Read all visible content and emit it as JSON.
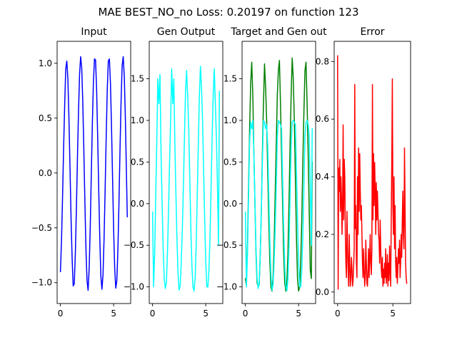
{
  "title": "MAE BEST_NO_no Loss: 0.20197 on function 123",
  "chart_data": [
    {
      "type": "line",
      "title": "Input",
      "xlim": [
        -0.31,
        6.6
      ],
      "ylim": [
        -1.19,
        1.2
      ],
      "xticks": [
        0,
        5
      ],
      "xtick_labels": [
        "0",
        "5"
      ],
      "yticks": [
        -1.0,
        -0.5,
        0.0,
        0.5,
        1.0
      ],
      "ytick_labels": [
        "−1.0",
        "−0.5",
        "0.0",
        "0.5",
        "1.0"
      ],
      "series": [
        {
          "color": "#0000ff",
          "x": [
            0,
            0.1,
            0.2,
            0.3,
            0.4,
            0.5,
            0.6,
            0.7,
            0.8,
            0.9,
            1.0,
            1.1,
            1.2,
            1.3,
            1.4,
            1.5,
            1.6,
            1.7,
            1.8,
            1.9,
            2.0,
            2.1,
            2.2,
            2.3,
            2.4,
            2.5,
            2.6,
            2.7,
            2.8,
            2.9,
            3.0,
            3.1,
            3.2,
            3.3,
            3.4,
            3.5,
            3.6,
            3.7,
            3.8,
            3.9,
            4.0,
            4.1,
            4.2,
            4.3,
            4.4,
            4.5,
            4.6,
            4.7,
            4.8,
            4.9,
            5.0,
            5.1,
            5.2,
            5.3,
            5.4,
            5.5,
            5.6,
            5.7,
            5.8,
            5.9,
            6.0,
            6.1,
            6.2,
            6.28
          ],
          "y": [
            -0.9,
            -0.62,
            -0.22,
            0.23,
            0.62,
            0.95,
            1.02,
            0.86,
            0.5,
            0.05,
            -0.42,
            -0.78,
            -1.03,
            -1.01,
            -0.74,
            -0.33,
            0.14,
            0.56,
            0.9,
            1.06,
            0.96,
            0.65,
            0.21,
            -0.27,
            -0.7,
            -0.98,
            -1.07,
            -0.87,
            -0.5,
            -0.02,
            0.45,
            0.83,
            1.04,
            1.03,
            0.76,
            0.33,
            -0.16,
            -0.6,
            -0.94,
            -1.06,
            -0.93,
            -0.6,
            -0.15,
            0.33,
            0.76,
            1.02,
            1.04,
            0.82,
            0.42,
            -0.05,
            -0.52,
            -0.87,
            -1.05,
            -0.98,
            -0.7,
            -0.27,
            0.22,
            0.66,
            0.98,
            1.06,
            0.88,
            0.5,
            0.01,
            -0.4
          ]
        }
      ]
    },
    {
      "type": "line",
      "title": "Gen Output",
      "xlim": [
        -0.31,
        6.6
      ],
      "ylim": [
        -1.2,
        1.95
      ],
      "xticks": [
        0,
        5
      ],
      "xtick_labels": [
        "0",
        "5"
      ],
      "yticks": [
        -1.0,
        -0.5,
        0.0,
        0.5,
        1.0,
        1.5
      ],
      "ytick_labels": [
        "−1.0",
        "−0.5",
        "0.0",
        "0.5",
        "1.0",
        "1.5"
      ],
      "series": [
        {
          "color": "#00ffff",
          "x": [
            0,
            0.1,
            0.2,
            0.3,
            0.4,
            0.5,
            0.6,
            0.7,
            0.8,
            0.9,
            1.0,
            1.1,
            1.2,
            1.3,
            1.4,
            1.5,
            1.6,
            1.7,
            1.8,
            1.9,
            2.0,
            2.1,
            2.2,
            2.3,
            2.4,
            2.5,
            2.6,
            2.7,
            2.8,
            2.9,
            3.0,
            3.1,
            3.2,
            3.3,
            3.4,
            3.5,
            3.6,
            3.7,
            3.8,
            3.9,
            4.0,
            4.1,
            4.2,
            4.3,
            4.4,
            4.5,
            4.6,
            4.7,
            4.8,
            4.9,
            5.0,
            5.1,
            5.2,
            5.3,
            5.4,
            5.5,
            5.6,
            5.7,
            5.8,
            5.9,
            6.0,
            6.1,
            6.2,
            6.28
          ],
          "y": [
            -0.1,
            -1.0,
            -0.6,
            0.1,
            0.75,
            1.5,
            1.2,
            1.55,
            0.6,
            0.0,
            -0.55,
            -0.9,
            -1.02,
            -0.95,
            -0.6,
            -0.1,
            0.5,
            1.0,
            1.62,
            1.2,
            1.5,
            0.7,
            0.1,
            -0.45,
            -0.85,
            -1.04,
            -0.98,
            -0.7,
            -0.3,
            0.2,
            0.8,
            1.35,
            1.6,
            1.3,
            0.9,
            0.3,
            -0.3,
            -0.75,
            -1.0,
            -1.05,
            -0.9,
            -0.5,
            0.1,
            0.7,
            1.3,
            1.65,
            1.4,
            1.0,
            0.4,
            -0.2,
            -0.7,
            -1.0,
            -1.0,
            -0.8,
            -0.4,
            0.2,
            0.8,
            1.3,
            1.62,
            1.2,
            0.8,
            0.2,
            -0.5,
            1.35
          ]
        }
      ]
    },
    {
      "type": "line",
      "title": "Target and Gen out",
      "xlim": [
        -0.31,
        6.6
      ],
      "ylim": [
        -1.2,
        1.95
      ],
      "xticks": [
        0,
        5
      ],
      "xtick_labels": [
        "0",
        "5"
      ],
      "yticks": [
        -1.0,
        -0.5,
        0.0,
        0.5,
        1.0,
        1.5
      ],
      "ytick_labels": [
        "−1.0",
        "−0.5",
        "0.0",
        "0.5",
        "1.0",
        "1.5"
      ],
      "series": [
        {
          "color": "#008000",
          "x": [
            0,
            0.1,
            0.2,
            0.3,
            0.4,
            0.5,
            0.6,
            0.7,
            0.8,
            0.9,
            1.0,
            1.1,
            1.2,
            1.3,
            1.4,
            1.5,
            1.6,
            1.7,
            1.8,
            1.9,
            2.0,
            2.1,
            2.2,
            2.3,
            2.4,
            2.5,
            2.6,
            2.7,
            2.8,
            2.9,
            3.0,
            3.1,
            3.2,
            3.3,
            3.4,
            3.5,
            3.6,
            3.7,
            3.8,
            3.9,
            4.0,
            4.1,
            4.2,
            4.3,
            4.4,
            4.5,
            4.6,
            4.7,
            4.8,
            4.9,
            5.0,
            5.1,
            5.2,
            5.3,
            5.4,
            5.5,
            5.6,
            5.7,
            5.8,
            5.9,
            6.0,
            6.1,
            6.2,
            6.28
          ],
          "y": [
            -0.9,
            -0.98,
            -0.5,
            0.2,
            0.9,
            1.45,
            1.7,
            1.3,
            0.6,
            0.0,
            -0.6,
            -0.95,
            -1.0,
            -0.97,
            -0.6,
            -0.1,
            0.6,
            1.2,
            1.68,
            1.4,
            1.0,
            0.4,
            -0.2,
            -0.7,
            -1.0,
            -1.05,
            -0.9,
            -0.5,
            0.1,
            0.7,
            1.3,
            1.6,
            1.72,
            1.2,
            0.6,
            0.0,
            -0.6,
            -0.95,
            -1.05,
            -0.95,
            -0.6,
            0.0,
            0.7,
            1.3,
            1.75,
            1.5,
            1.0,
            0.3,
            -0.4,
            -0.9,
            -1.05,
            -1.0,
            -0.7,
            -0.2,
            0.5,
            1.1,
            1.6,
            1.7,
            1.2,
            0.6,
            -0.1,
            -0.8,
            -0.9,
            0.5
          ]
        },
        {
          "color": "#00ffff",
          "x": [
            0,
            0.1,
            0.2,
            0.3,
            0.4,
            0.5,
            0.6,
            0.7,
            0.8,
            0.9,
            1.0,
            1.1,
            1.2,
            1.3,
            1.4,
            1.5,
            1.6,
            1.7,
            1.8,
            1.9,
            2.0,
            2.1,
            2.2,
            2.3,
            2.4,
            2.5,
            2.6,
            2.7,
            2.8,
            2.9,
            3.0,
            3.1,
            3.2,
            3.3,
            3.4,
            3.5,
            3.6,
            3.7,
            3.8,
            3.9,
            4.0,
            4.1,
            4.2,
            4.3,
            4.4,
            4.5,
            4.6,
            4.7,
            4.8,
            4.9,
            5.0,
            5.1,
            5.2,
            5.3,
            5.4,
            5.5,
            5.6,
            5.7,
            5.8,
            5.9,
            6.0,
            6.1,
            6.2,
            6.28
          ],
          "y": [
            -0.1,
            -1.0,
            -0.6,
            0.1,
            0.75,
            0.98,
            0.9,
            1.0,
            0.6,
            0.0,
            -0.55,
            -0.9,
            -1.02,
            -0.95,
            -0.6,
            -0.1,
            0.5,
            1.0,
            0.98,
            0.9,
            0.95,
            0.7,
            0.1,
            -0.45,
            -0.85,
            -1.04,
            -0.98,
            -0.7,
            -0.3,
            0.2,
            0.8,
            1.0,
            0.98,
            0.95,
            0.9,
            0.3,
            -0.3,
            -0.75,
            -1.0,
            -1.05,
            -0.9,
            -0.5,
            0.1,
            0.7,
            0.98,
            1.0,
            0.98,
            0.95,
            0.4,
            -0.2,
            -0.7,
            -1.0,
            -1.0,
            -0.8,
            -0.4,
            0.2,
            0.8,
            0.98,
            1.0,
            0.95,
            0.8,
            0.2,
            -0.5,
            0.9
          ]
        }
      ]
    },
    {
      "type": "line",
      "title": "Error",
      "xlim": [
        -0.31,
        6.6
      ],
      "ylim": [
        -0.04,
        0.87
      ],
      "xticks": [
        0,
        5
      ],
      "xtick_labels": [
        "0",
        "5"
      ],
      "yticks": [
        0.0,
        0.2,
        0.4,
        0.6,
        0.8
      ],
      "ytick_labels": [
        "0.0",
        "0.2",
        "0.4",
        "0.6",
        "0.8"
      ],
      "series": [
        {
          "color": "#ff0000",
          "x": [
            0,
            0.05,
            0.1,
            0.15,
            0.2,
            0.25,
            0.3,
            0.35,
            0.4,
            0.45,
            0.5,
            0.55,
            0.6,
            0.65,
            0.7,
            0.75,
            0.8,
            0.85,
            0.9,
            0.95,
            1.0,
            1.05,
            1.1,
            1.15,
            1.2,
            1.25,
            1.3,
            1.35,
            1.4,
            1.45,
            1.5,
            1.55,
            1.6,
            1.65,
            1.7,
            1.75,
            1.8,
            1.85,
            1.9,
            1.95,
            2.0,
            2.05,
            2.1,
            2.15,
            2.2,
            2.25,
            2.3,
            2.35,
            2.4,
            2.45,
            2.5,
            2.55,
            2.6,
            2.65,
            2.7,
            2.75,
            2.8,
            2.85,
            2.9,
            2.95,
            3.0,
            3.05,
            3.1,
            3.15,
            3.2,
            3.25,
            3.3,
            3.35,
            3.4,
            3.45,
            3.5,
            3.55,
            3.6,
            3.65,
            3.7,
            3.75,
            3.8,
            3.85,
            3.9,
            3.95,
            4.0,
            4.05,
            4.1,
            4.15,
            4.2,
            4.25,
            4.3,
            4.35,
            4.4,
            4.45,
            4.5,
            4.55,
            4.6,
            4.65,
            4.7,
            4.75,
            4.8,
            4.85,
            4.9,
            4.95,
            5.0,
            5.05,
            5.1,
            5.15,
            5.2,
            5.25,
            5.3,
            5.35,
            5.4,
            5.45,
            5.5,
            5.55,
            5.6,
            5.65,
            5.7,
            5.75,
            5.8,
            5.85,
            5.9,
            5.95,
            6.0,
            6.05,
            6.1,
            6.15,
            6.2,
            6.25
          ],
          "y": [
            0.82,
            0.01,
            0.43,
            0.35,
            0.46,
            0.28,
            0.4,
            0.33,
            0.2,
            0.3,
            0.58,
            0.25,
            0.46,
            0.4,
            0.2,
            0.1,
            0.05,
            0.28,
            0.15,
            0.08,
            0.02,
            0.2,
            0.1,
            0.02,
            0.05,
            0.12,
            0.08,
            0.02,
            0.04,
            0.09,
            0.15,
            0.72,
            0.22,
            0.3,
            0.1,
            0.05,
            0.4,
            0.2,
            0.5,
            0.28,
            0.48,
            0.35,
            0.25,
            0.3,
            0.2,
            0.1,
            0.05,
            0.15,
            0.08,
            0.02,
            0.05,
            0.18,
            0.1,
            0.03,
            0.02,
            0.08,
            0.15,
            0.05,
            0.12,
            0.2,
            0.1,
            0.06,
            0.15,
            0.72,
            0.25,
            0.48,
            0.3,
            0.45,
            0.35,
            0.2,
            0.38,
            0.25,
            0.35,
            0.28,
            0.2,
            0.18,
            0.1,
            0.25,
            0.15,
            0.08,
            0.05,
            0.12,
            0.02,
            0.08,
            0.03,
            0.1,
            0.05,
            0.15,
            0.03,
            0.06,
            0.13,
            0.02,
            0.1,
            0.04,
            0.16,
            0.08,
            0.02,
            0.25,
            0.45,
            0.74,
            0.3,
            0.2,
            0.4,
            0.15,
            0.3,
            0.1,
            0.05,
            0.12,
            0.03,
            0.08,
            0.15,
            0.1,
            0.18,
            0.05,
            0.1,
            0.2,
            0.12,
            0.25,
            0.35,
            0.2,
            0.15,
            0.5,
            0.3,
            0.1,
            0.05,
            0.03
          ]
        }
      ]
    }
  ]
}
